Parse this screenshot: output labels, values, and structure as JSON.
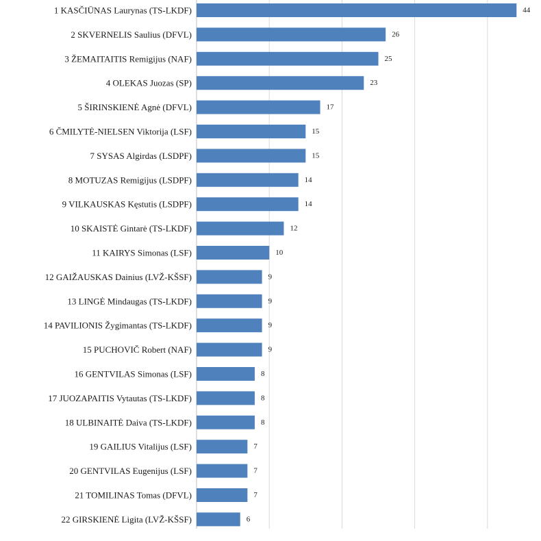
{
  "chart_data": {
    "type": "bar",
    "orientation": "horizontal",
    "categories": [
      "1 KASČIŪNAS Laurynas (TS-LKDF)",
      "2 SKVERNELIS Saulius (DFVL)",
      "3 ŽEMAITAITIS Remigijus (NAF)",
      "4 OLEKAS Juozas (SP)",
      "5 ŠIRINSKIENĖ Agnė (DFVL)",
      "6 ČMILYTĖ-NIELSEN Viktorija (LSF)",
      "7 SYSAS Algirdas (LSDPF)",
      "8 MOTUZAS Remigijus (LSDPF)",
      "9 VILKAUSKAS Kęstutis (LSDPF)",
      "10 SKAISTĖ Gintarė (TS-LKDF)",
      "11 KAIRYS Simonas (LSF)",
      "12 GAIŽAUSKAS Dainius (LVŽ-KŠSF)",
      "13 LINGĖ Mindaugas (TS-LKDF)",
      "14 PAVILIONIS Žygimantas (TS-LKDF)",
      "15 PUCHOVIČ Robert (NAF)",
      "16 GENTVILAS Simonas (LSF)",
      "17 JUOZAPAITIS Vytautas (TS-LKDF)",
      "18 ULBINAITĖ Daiva (TS-LKDF)",
      "19 GAILIUS Vitalijus (LSF)",
      "20 GENTVILAS Eugenijus (LSF)",
      "21 TOMILINAS Tomas (DFVL)",
      "22 GIRSKIENĖ Ligita (LVŽ-KŠSF)"
    ],
    "values": [
      44,
      26,
      25,
      23,
      17,
      15,
      15,
      14,
      14,
      12,
      10,
      9,
      9,
      9,
      9,
      8,
      8,
      8,
      7,
      7,
      7,
      6
    ],
    "xlim": [
      0,
      50
    ],
    "grid": "vertical",
    "bar_color": "#4f81bd",
    "grid_color": "#d9d9d9",
    "title": "",
    "xlabel": "",
    "ylabel": ""
  }
}
